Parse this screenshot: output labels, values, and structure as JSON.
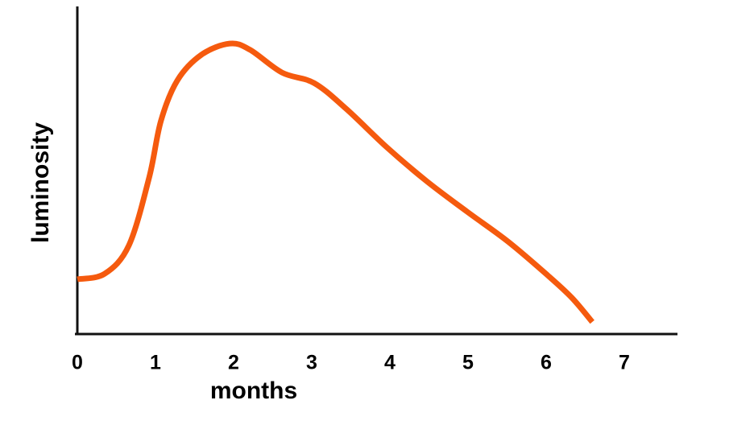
{
  "chart_data": {
    "type": "line",
    "x_label": "months",
    "y_label": "luminosity",
    "x": [
      0,
      0.35,
      0.66,
      0.92,
      1.07,
      1.28,
      1.59,
      1.95,
      2.21,
      2.62,
      3.03,
      3.44,
      3.96,
      4.47,
      4.99,
      5.51,
      6.02,
      6.33,
      6.59
    ],
    "series": [
      {
        "color": "#f55a0e",
        "values": [
          16.8,
          18.5,
          27.2,
          48.1,
          65.4,
          77.8,
          85.7,
          89.1,
          87.2,
          80.2,
          77.0,
          69.1,
          57.3,
          46.9,
          37.5,
          28.4,
          18.0,
          11.1,
          3.7
        ]
      }
    ],
    "xlim": [
      0,
      7.67
    ],
    "xticks": [
      0,
      1,
      2,
      3,
      4,
      5,
      6,
      7
    ],
    "ylim": [
      0,
      100
    ],
    "grid": false
  }
}
